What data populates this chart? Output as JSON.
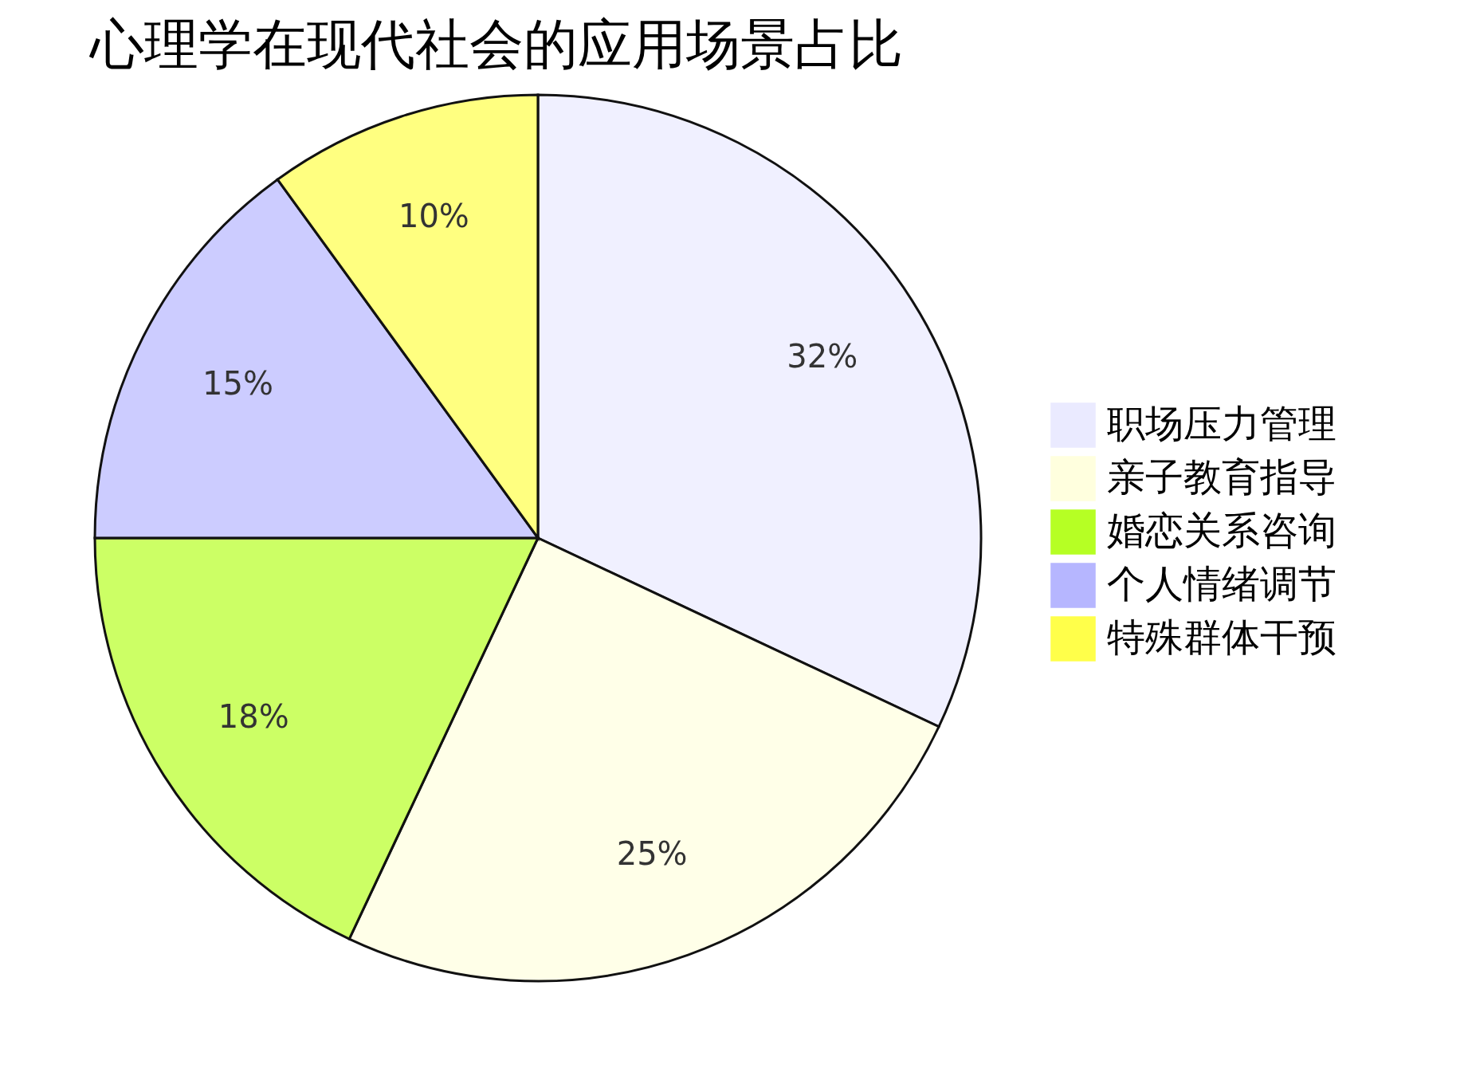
{
  "chart_data": {
    "type": "pie",
    "title": "心理学在现代社会的应用场景占比",
    "categories": [
      "职场压力管理",
      "亲子教育指导",
      "婚恋关系咨询",
      "个人情绪调节",
      "特殊群体干预"
    ],
    "values": [
      32,
      25,
      18,
      15,
      10
    ],
    "colors": [
      "#eaeaff",
      "#ffffde",
      "#b6ff24",
      "#b6b6ff",
      "#ffff4a"
    ],
    "value_labels": [
      "32%",
      "25%",
      "18%",
      "15%",
      "10%"
    ],
    "legend": "right"
  }
}
